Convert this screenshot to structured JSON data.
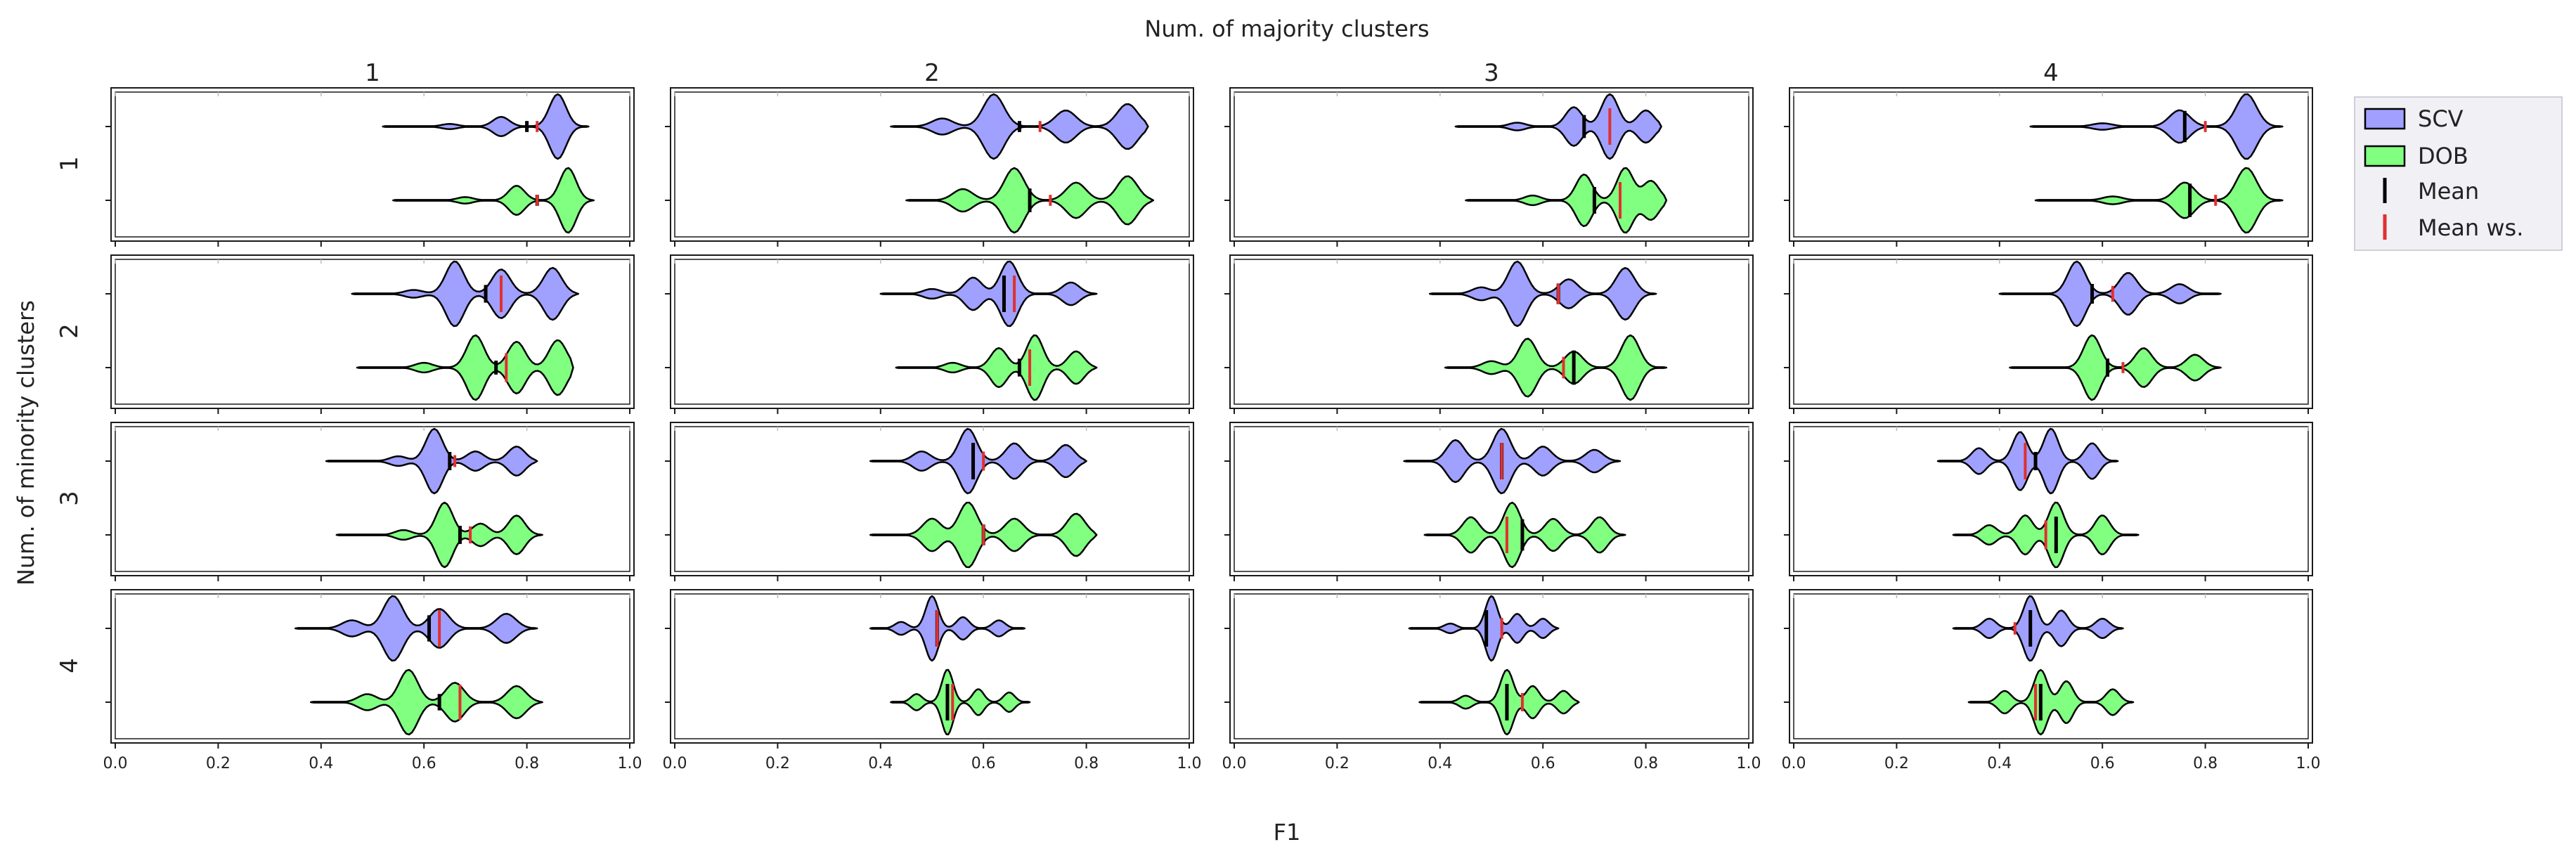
{
  "chart_data": {
    "type": "violin",
    "title": "Num. of majority clusters",
    "column_labels": [
      "1",
      "2",
      "3",
      "4"
    ],
    "row_labels": [
      "1",
      "2",
      "3",
      "4"
    ],
    "xlabel": "F1",
    "ylabel": "Num. of minority clusters",
    "xlim": [
      0.0,
      1.0
    ],
    "xticks": [
      "0.0",
      "0.2",
      "0.4",
      "0.6",
      "0.8",
      "1.0"
    ],
    "legend": {
      "position": "right",
      "entries": [
        {
          "name": "SCV",
          "kind": "patch",
          "color": "#a0a0ff"
        },
        {
          "name": "DOB",
          "kind": "patch",
          "color": "#80ff80"
        },
        {
          "name": "Mean",
          "kind": "line",
          "color": "#000000"
        },
        {
          "name": "Mean ws.",
          "kind": "line",
          "color": "#e03030"
        }
      ]
    },
    "colors": {
      "scv": "#a0a0ff",
      "dob": "#80ff80",
      "mean": "#000000",
      "mean_ws": "#e03030"
    },
    "panels": [
      [
        {
          "scv": {
            "min": 0.52,
            "max": 0.92,
            "peaks": [
              [
                0.65,
                0.08
              ],
              [
                0.75,
                0.3
              ],
              [
                0.86,
                1.0
              ]
            ],
            "mean": 0.8,
            "mean_ws": 0.82
          },
          "dob": {
            "min": 0.54,
            "max": 0.93,
            "peaks": [
              [
                0.68,
                0.1
              ],
              [
                0.78,
                0.45
              ],
              [
                0.88,
                1.0
              ]
            ],
            "mean": 0.82,
            "mean_ws": 0.82
          }
        },
        {
          "scv": {
            "min": 0.42,
            "max": 0.92,
            "peaks": [
              [
                0.52,
                0.25
              ],
              [
                0.62,
                1.0
              ],
              [
                0.76,
                0.5
              ],
              [
                0.88,
                0.7
              ]
            ],
            "mean": 0.67,
            "mean_ws": 0.71
          },
          "dob": {
            "min": 0.45,
            "max": 0.93,
            "peaks": [
              [
                0.56,
                0.35
              ],
              [
                0.66,
                1.0
              ],
              [
                0.78,
                0.55
              ],
              [
                0.88,
                0.75
              ]
            ],
            "mean": 0.69,
            "mean_ws": 0.73
          }
        },
        {
          "scv": {
            "min": 0.43,
            "max": 0.83,
            "peaks": [
              [
                0.55,
                0.12
              ],
              [
                0.66,
                0.6
              ],
              [
                0.73,
                1.0
              ],
              [
                0.8,
                0.5
              ]
            ],
            "mean": 0.68,
            "mean_ws": 0.73
          },
          "dob": {
            "min": 0.45,
            "max": 0.84,
            "peaks": [
              [
                0.58,
                0.15
              ],
              [
                0.68,
                0.8
              ],
              [
                0.76,
                1.0
              ],
              [
                0.81,
                0.6
              ]
            ],
            "mean": 0.7,
            "mean_ws": 0.75
          }
        },
        {
          "scv": {
            "min": 0.46,
            "max": 0.95,
            "peaks": [
              [
                0.6,
                0.1
              ],
              [
                0.75,
                0.5
              ],
              [
                0.88,
                1.0
              ]
            ],
            "mean": 0.76,
            "mean_ws": 0.8
          },
          "dob": {
            "min": 0.47,
            "max": 0.95,
            "peaks": [
              [
                0.62,
                0.12
              ],
              [
                0.76,
                0.55
              ],
              [
                0.88,
                1.0
              ]
            ],
            "mean": 0.77,
            "mean_ws": 0.82
          }
        }
      ],
      [
        {
          "scv": {
            "min": 0.46,
            "max": 0.9,
            "peaks": [
              [
                0.58,
                0.12
              ],
              [
                0.66,
                1.0
              ],
              [
                0.75,
                0.75
              ],
              [
                0.85,
                0.8
              ]
            ],
            "mean": 0.72,
            "mean_ws": 0.75
          },
          "dob": {
            "min": 0.47,
            "max": 0.89,
            "peaks": [
              [
                0.6,
                0.15
              ],
              [
                0.7,
                1.0
              ],
              [
                0.78,
                0.8
              ],
              [
                0.86,
                0.85
              ]
            ],
            "mean": 0.74,
            "mean_ws": 0.76
          }
        },
        {
          "scv": {
            "min": 0.4,
            "max": 0.82,
            "peaks": [
              [
                0.5,
                0.15
              ],
              [
                0.58,
                0.5
              ],
              [
                0.65,
                1.0
              ],
              [
                0.77,
                0.35
              ]
            ],
            "mean": 0.64,
            "mean_ws": 0.66
          },
          "dob": {
            "min": 0.43,
            "max": 0.82,
            "peaks": [
              [
                0.54,
                0.15
              ],
              [
                0.63,
                0.6
              ],
              [
                0.7,
                1.0
              ],
              [
                0.78,
                0.5
              ]
            ],
            "mean": 0.67,
            "mean_ws": 0.69
          }
        },
        {
          "scv": {
            "min": 0.38,
            "max": 0.82,
            "peaks": [
              [
                0.48,
                0.2
              ],
              [
                0.55,
                1.0
              ],
              [
                0.65,
                0.45
              ],
              [
                0.76,
                0.8
              ]
            ],
            "mean": 0.63,
            "mean_ws": 0.63
          },
          "dob": {
            "min": 0.41,
            "max": 0.84,
            "peaks": [
              [
                0.5,
                0.2
              ],
              [
                0.57,
                0.9
              ],
              [
                0.66,
                0.5
              ],
              [
                0.77,
                1.0
              ]
            ],
            "mean": 0.66,
            "mean_ws": 0.64
          }
        },
        {
          "scv": {
            "min": 0.4,
            "max": 0.83,
            "peaks": [
              [
                0.55,
                1.0
              ],
              [
                0.65,
                0.65
              ],
              [
                0.75,
                0.3
              ]
            ],
            "mean": 0.58,
            "mean_ws": 0.62
          },
          "dob": {
            "min": 0.42,
            "max": 0.83,
            "peaks": [
              [
                0.58,
                1.0
              ],
              [
                0.68,
                0.6
              ],
              [
                0.78,
                0.4
              ]
            ],
            "mean": 0.61,
            "mean_ws": 0.64
          }
        }
      ],
      [
        {
          "scv": {
            "min": 0.41,
            "max": 0.82,
            "peaks": [
              [
                0.55,
                0.15
              ],
              [
                0.62,
                1.0
              ],
              [
                0.7,
                0.3
              ],
              [
                0.78,
                0.45
              ]
            ],
            "mean": 0.65,
            "mean_ws": 0.66
          },
          "dob": {
            "min": 0.43,
            "max": 0.83,
            "peaks": [
              [
                0.56,
                0.15
              ],
              [
                0.64,
                1.0
              ],
              [
                0.71,
                0.35
              ],
              [
                0.78,
                0.6
              ]
            ],
            "mean": 0.67,
            "mean_ws": 0.69
          }
        },
        {
          "scv": {
            "min": 0.38,
            "max": 0.8,
            "peaks": [
              [
                0.48,
                0.3
              ],
              [
                0.57,
                1.0
              ],
              [
                0.66,
                0.55
              ],
              [
                0.76,
                0.5
              ]
            ],
            "mean": 0.58,
            "mean_ws": 0.6
          },
          "dob": {
            "min": 0.38,
            "max": 0.82,
            "peaks": [
              [
                0.5,
                0.5
              ],
              [
                0.57,
                1.0
              ],
              [
                0.66,
                0.5
              ],
              [
                0.78,
                0.65
              ]
            ],
            "mean": 0.6,
            "mean_ws": 0.6
          }
        },
        {
          "scv": {
            "min": 0.33,
            "max": 0.75,
            "peaks": [
              [
                0.43,
                0.65
              ],
              [
                0.52,
                1.0
              ],
              [
                0.6,
                0.45
              ],
              [
                0.7,
                0.35
              ]
            ],
            "mean": 0.52,
            "mean_ws": 0.52
          },
          "dob": {
            "min": 0.37,
            "max": 0.76,
            "peaks": [
              [
                0.46,
                0.55
              ],
              [
                0.54,
                1.0
              ],
              [
                0.62,
                0.5
              ],
              [
                0.71,
                0.55
              ]
            ],
            "mean": 0.56,
            "mean_ws": 0.53
          }
        },
        {
          "scv": {
            "min": 0.28,
            "max": 0.63,
            "peaks": [
              [
                0.36,
                0.4
              ],
              [
                0.44,
                0.9
              ],
              [
                0.5,
                1.0
              ],
              [
                0.58,
                0.55
              ]
            ],
            "mean": 0.47,
            "mean_ws": 0.45
          },
          "dob": {
            "min": 0.31,
            "max": 0.67,
            "peaks": [
              [
                0.38,
                0.3
              ],
              [
                0.45,
                0.6
              ],
              [
                0.51,
                1.0
              ],
              [
                0.6,
                0.6
              ]
            ],
            "mean": 0.51,
            "mean_ws": 0.49
          }
        }
      ],
      [
        {
          "scv": {
            "min": 0.35,
            "max": 0.82,
            "peaks": [
              [
                0.46,
                0.25
              ],
              [
                0.54,
                1.0
              ],
              [
                0.63,
                0.6
              ],
              [
                0.76,
                0.45
              ]
            ],
            "mean": 0.61,
            "mean_ws": 0.63
          },
          "dob": {
            "min": 0.38,
            "max": 0.83,
            "peaks": [
              [
                0.49,
                0.25
              ],
              [
                0.57,
                1.0
              ],
              [
                0.66,
                0.6
              ],
              [
                0.78,
                0.5
              ]
            ],
            "mean": 0.63,
            "mean_ws": 0.67
          }
        },
        {
          "scv": {
            "min": 0.38,
            "max": 0.68,
            "peaks": [
              [
                0.44,
                0.2
              ],
              [
                0.5,
                1.0
              ],
              [
                0.56,
                0.35
              ],
              [
                0.63,
                0.25
              ]
            ],
            "mean": 0.51,
            "mean_ws": 0.51
          },
          "dob": {
            "min": 0.42,
            "max": 0.69,
            "peaks": [
              [
                0.47,
                0.25
              ],
              [
                0.53,
                1.0
              ],
              [
                0.59,
                0.4
              ],
              [
                0.65,
                0.3
              ]
            ],
            "mean": 0.53,
            "mean_ws": 0.54
          }
        },
        {
          "scv": {
            "min": 0.34,
            "max": 0.63,
            "peaks": [
              [
                0.42,
                0.15
              ],
              [
                0.5,
                1.0
              ],
              [
                0.55,
                0.45
              ],
              [
                0.6,
                0.3
              ]
            ],
            "mean": 0.49,
            "mean_ws": 0.52
          },
          "dob": {
            "min": 0.36,
            "max": 0.67,
            "peaks": [
              [
                0.45,
                0.2
              ],
              [
                0.53,
                1.0
              ],
              [
                0.58,
                0.5
              ],
              [
                0.64,
                0.35
              ]
            ],
            "mean": 0.53,
            "mean_ws": 0.56
          }
        },
        {
          "scv": {
            "min": 0.31,
            "max": 0.64,
            "peaks": [
              [
                0.38,
                0.3
              ],
              [
                0.46,
                1.0
              ],
              [
                0.52,
                0.55
              ],
              [
                0.6,
                0.3
              ]
            ],
            "mean": 0.46,
            "mean_ws": 0.43
          },
          "dob": {
            "min": 0.34,
            "max": 0.66,
            "peaks": [
              [
                0.41,
                0.35
              ],
              [
                0.48,
                1.0
              ],
              [
                0.53,
                0.65
              ],
              [
                0.62,
                0.4
              ]
            ],
            "mean": 0.48,
            "mean_ws": 0.47
          }
        }
      ]
    ]
  }
}
